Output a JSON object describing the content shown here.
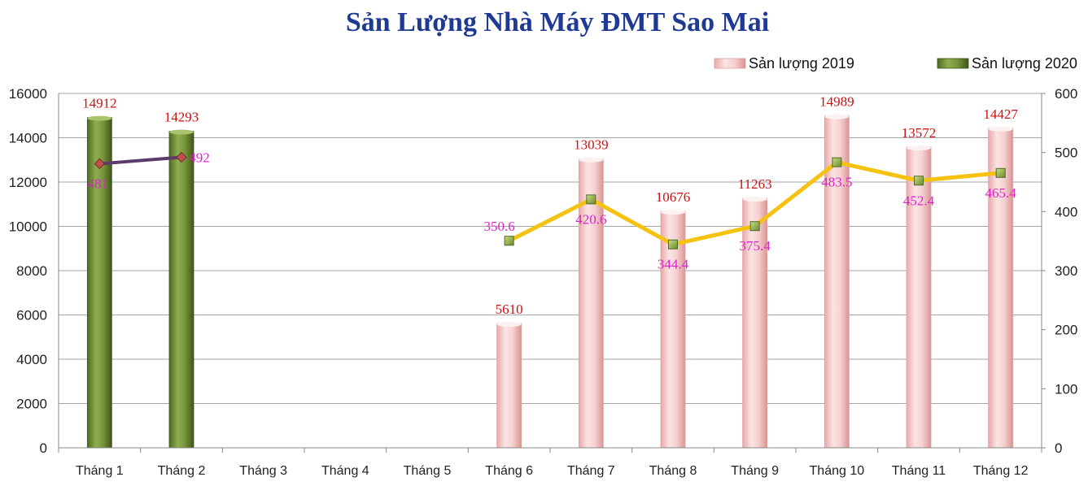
{
  "chart_data": {
    "type": "bar",
    "title": "Sản Lượng Nhà Máy ĐMT Sao Mai",
    "categories": [
      "Tháng 1",
      "Tháng 2",
      "Tháng 3",
      "Tháng 4",
      "Tháng 5",
      "Tháng 6",
      "Tháng 7",
      "Tháng 8",
      "Tháng 9",
      "Tháng 10",
      "Tháng 11",
      "Tháng 12"
    ],
    "y_left": {
      "ylim": [
        0,
        16000
      ],
      "ticks": [
        "0",
        "2000",
        "4000",
        "6000",
        "8000",
        "10000",
        "12000",
        "14000",
        "16000"
      ]
    },
    "y_right": {
      "ylim": [
        0,
        600
      ],
      "ticks": [
        "0",
        "100",
        "200",
        "300",
        "400",
        "500",
        "600"
      ]
    },
    "grid": true,
    "legend_position": "top-right",
    "series": [
      {
        "name": "Sản lượng 2019",
        "kind": "bar",
        "axis": "left",
        "color": "#f2c4c4",
        "values": [
          null,
          null,
          null,
          null,
          null,
          5610,
          13039,
          10676,
          11263,
          14989,
          13572,
          14427
        ],
        "labels": [
          "",
          "",
          "",
          "",
          "",
          "5610",
          "13039",
          "10676",
          "11263",
          "14989",
          "13572",
          "14427"
        ]
      },
      {
        "name": "Sản lượng 2020",
        "kind": "bar",
        "axis": "left",
        "color": "#77933c",
        "values": [
          14912,
          14293,
          null,
          null,
          null,
          null,
          null,
          null,
          null,
          null,
          null,
          null
        ],
        "labels": [
          "14912",
          "14293",
          "",
          "",
          "",
          "",
          "",
          "",
          "",
          "",
          "",
          ""
        ]
      },
      {
        "kind": "line",
        "axis": "right",
        "color": "#5b3b6b",
        "marker": "diamond",
        "values": [
          481,
          492,
          null,
          null,
          null,
          null,
          null,
          null,
          null,
          null,
          null,
          null
        ],
        "labels": [
          "481",
          "492",
          "",
          "",
          "",
          "",
          "",
          "",
          "",
          "",
          "",
          ""
        ]
      },
      {
        "kind": "line",
        "axis": "right",
        "color": "#f5c211",
        "marker": "square",
        "values": [
          null,
          null,
          null,
          null,
          null,
          350.6,
          420.6,
          344.4,
          375.4,
          483.5,
          452.4,
          465.4
        ],
        "labels": [
          "",
          "",
          "",
          "",
          "",
          "350.6",
          "420.6",
          "344.4",
          "375.4",
          "483.5",
          "452.4",
          "465.4"
        ]
      }
    ]
  }
}
